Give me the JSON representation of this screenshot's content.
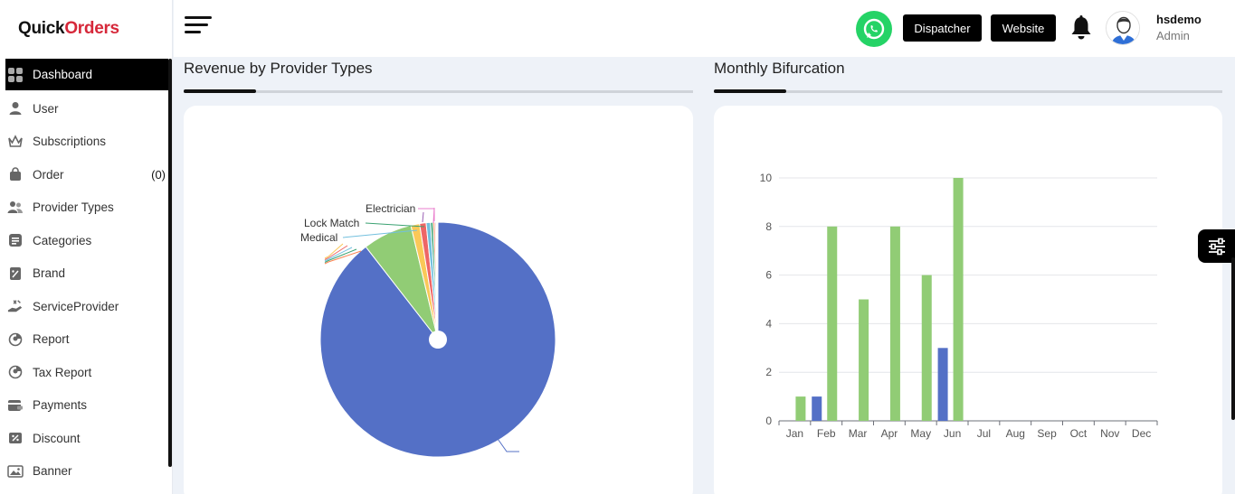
{
  "brand": {
    "part1": "Quick",
    "part2": "Orders"
  },
  "sidebar": {
    "items": [
      {
        "label": "Dashboard",
        "icon": "grid-icon",
        "active": true
      },
      {
        "label": "User",
        "icon": "user-icon"
      },
      {
        "label": "Subscriptions",
        "icon": "crown-icon"
      },
      {
        "label": "Order",
        "icon": "bag-icon",
        "count": "(0)"
      },
      {
        "label": "Provider Types",
        "icon": "users-icon"
      },
      {
        "label": "Categories",
        "icon": "list-icon"
      },
      {
        "label": "Brand",
        "icon": "tag-icon"
      },
      {
        "label": "ServiceProvider",
        "icon": "service-hand-icon"
      },
      {
        "label": "Report",
        "icon": "report-icon"
      },
      {
        "label": "Tax Report",
        "icon": "tax-report-icon"
      },
      {
        "label": "Payments",
        "icon": "wallet-icon"
      },
      {
        "label": "Discount",
        "icon": "discount-icon"
      },
      {
        "label": "Banner",
        "icon": "image-icon"
      }
    ]
  },
  "header": {
    "dispatcher_label": "Dispatcher",
    "website_label": "Website",
    "user_name": "hsdemo",
    "user_role": "Admin"
  },
  "sections": {
    "revenue_title": "Revenue by Provider Types",
    "monthly_title": "Monthly Bifurcation"
  },
  "colors": {
    "accent": "#000000",
    "whatsapp": "#25d366",
    "bar_green": "#91cc75",
    "bar_blue": "#5470c6"
  },
  "chart_data": [
    {
      "type": "pie",
      "title": "",
      "labels": [
        "",
        "",
        "",
        "",
        "",
        "",
        "",
        "",
        "Medical",
        "Lock Match",
        "Electrician"
      ],
      "values": [
        89.5,
        6.8,
        1.2,
        0.9,
        0.6,
        0.35,
        0.25,
        0.15,
        0.1,
        0.08,
        0.07
      ],
      "colors": [
        "#5470c6",
        "#91cc75",
        "#fac858",
        "#ee6666",
        "#73c0de",
        "#3ba272",
        "#fc8452",
        "#9a60b4",
        "#ea7ccc",
        "#5470c6",
        "#91cc75"
      ]
    },
    {
      "type": "bar",
      "title": "",
      "categories": [
        "Jan",
        "Feb",
        "Mar",
        "Apr",
        "May",
        "Jun",
        "Jul",
        "Aug",
        "Sep",
        "Oct",
        "Nov",
        "Dec"
      ],
      "series": [
        {
          "values": [
            1,
            8,
            5,
            8,
            6,
            10,
            0,
            0,
            0,
            0,
            0,
            0
          ],
          "color": "#91cc75"
        },
        {
          "values": [
            0,
            1,
            0,
            0,
            0,
            3,
            0,
            0,
            0,
            0,
            0,
            0
          ],
          "color": "#5470c6"
        }
      ],
      "ylim": [
        0,
        10
      ],
      "yticks": [
        0,
        2,
        4,
        6,
        8,
        10
      ],
      "grid": true
    }
  ]
}
